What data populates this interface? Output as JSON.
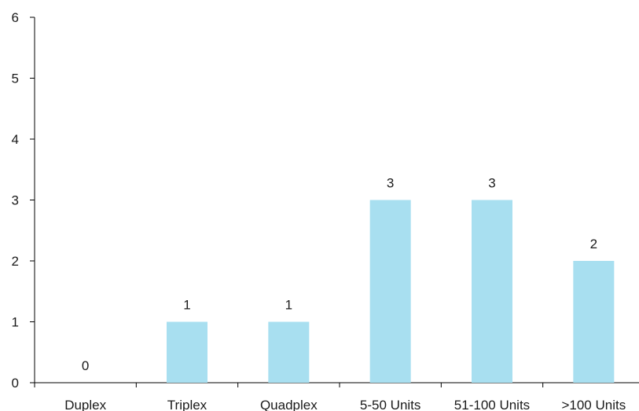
{
  "chart_data": {
    "type": "bar",
    "categories": [
      "Duplex",
      "Triplex",
      "Quadplex",
      "5-50 Units",
      "51-100 Units",
      ">100 Units"
    ],
    "values": [
      0,
      1,
      1,
      3,
      3,
      2
    ],
    "data_labels": [
      "0",
      "1",
      "1",
      "3",
      "3",
      "2"
    ],
    "y_ticks": [
      "0",
      "1",
      "2",
      "3",
      "4",
      "5",
      "6"
    ],
    "ylim": [
      0,
      6
    ],
    "title": "",
    "xlabel": "",
    "ylabel": "",
    "grid": false,
    "bar_color": "#a8dff0"
  }
}
